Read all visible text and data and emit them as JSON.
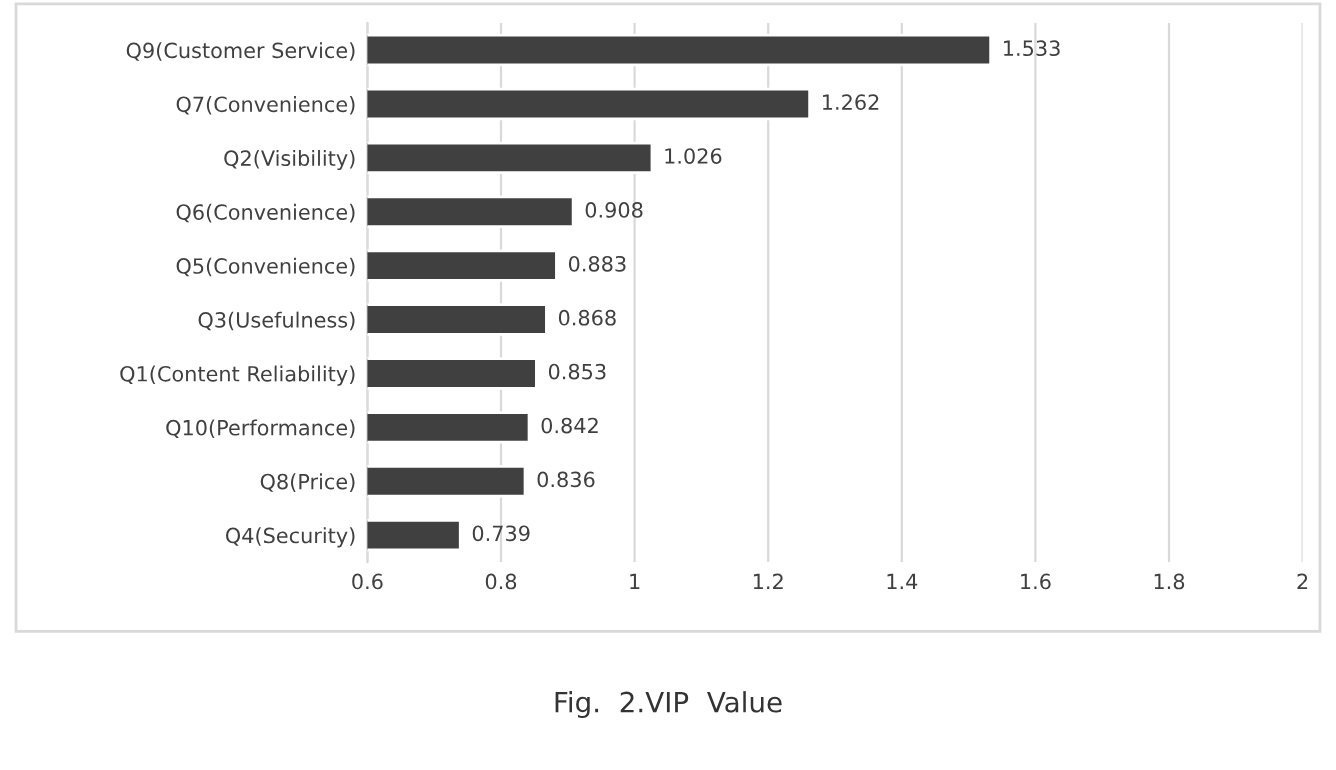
{
  "chart_data": {
    "type": "bar",
    "orientation": "horizontal",
    "categories": [
      "Q9(Customer Service)",
      "Q7(Convenience)",
      "Q2(Visibility)",
      "Q6(Convenience)",
      "Q5(Convenience)",
      "Q3(Usefulness)",
      "Q1(Content Reliability)",
      "Q10(Performance)",
      "Q8(Price)",
      "Q4(Security)"
    ],
    "values": [
      1.533,
      1.262,
      1.026,
      0.908,
      0.883,
      0.868,
      0.853,
      0.842,
      0.836,
      0.739
    ],
    "color": "#404040",
    "xlim": [
      0.6,
      2
    ],
    "xticks": [
      0.6,
      0.8,
      1,
      1.2,
      1.4,
      1.6,
      1.8,
      2
    ],
    "grid": "x",
    "data_labels": true,
    "annotations": [
      "Fig.  2.VIP  Value"
    ]
  }
}
